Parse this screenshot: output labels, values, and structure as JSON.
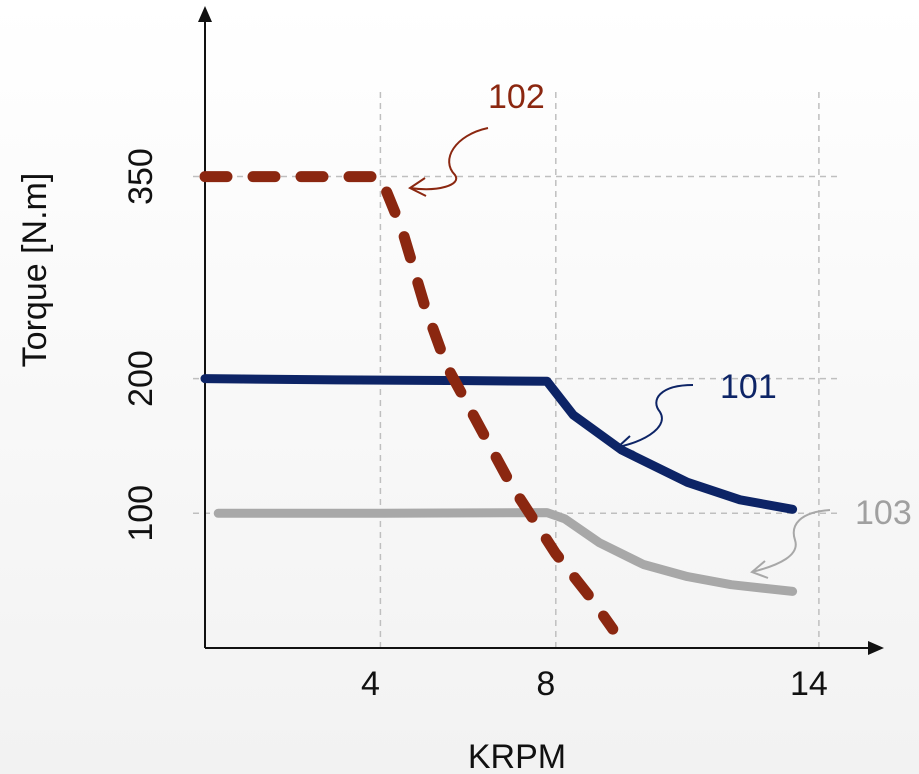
{
  "chart_data": {
    "type": "line",
    "title": "",
    "xlabel": "KRPM",
    "ylabel": "Torque [N.m]",
    "xlim": [
      0,
      14
    ],
    "ylim": [
      0,
      350
    ],
    "x_ticks": [
      "4",
      "8",
      "14"
    ],
    "x_tick_values": [
      4,
      8,
      14
    ],
    "y_ticks": [
      "100",
      "200",
      "350"
    ],
    "y_tick_values": [
      100,
      200,
      350
    ],
    "grid": true,
    "series": [
      {
        "name": "101",
        "color": "#0d2466",
        "style": "solid",
        "points": [
          [
            0,
            200
          ],
          [
            3,
            199
          ],
          [
            6,
            198.5
          ],
          [
            7.8,
            198
          ],
          [
            8.4,
            173
          ],
          [
            9.5,
            147
          ],
          [
            11,
            123
          ],
          [
            12.2,
            110
          ],
          [
            13.4,
            103
          ]
        ]
      },
      {
        "name": "102",
        "color": "#8b2710",
        "style": "dashed",
        "points": [
          [
            0,
            350
          ],
          [
            4,
            350
          ],
          [
            4.5,
            310
          ],
          [
            5,
            255
          ],
          [
            5.5,
            210
          ],
          [
            6,
            180
          ],
          [
            6.5,
            150
          ],
          [
            7,
            120
          ],
          [
            7.5,
            95
          ],
          [
            8,
            70
          ],
          [
            8.8,
            37
          ],
          [
            9.3,
            14
          ]
        ]
      },
      {
        "name": "103",
        "color": "#a8a8a8",
        "style": "solid",
        "points": [
          [
            0.3,
            100
          ],
          [
            4,
            100
          ],
          [
            7.8,
            100.5
          ],
          [
            8.2,
            96
          ],
          [
            9,
            78
          ],
          [
            10,
            62
          ],
          [
            11,
            53
          ],
          [
            12,
            47
          ],
          [
            13.4,
            42
          ]
        ]
      }
    ]
  }
}
